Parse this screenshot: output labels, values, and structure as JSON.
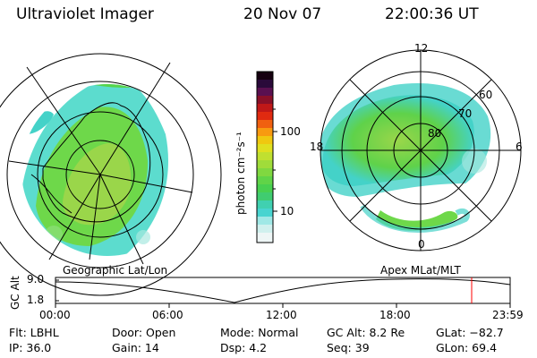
{
  "header": {
    "instrument": "Ultraviolet Imager",
    "date": "20 Nov 07",
    "time": "22:00:36 UT"
  },
  "colorbar": {
    "unit_label": "photon cm⁻²s⁻¹",
    "ticks": [
      "100",
      "10"
    ]
  },
  "polar_plot": {
    "mlt_labels": {
      "top": "12",
      "left": "18",
      "right": "6",
      "bottom": "0"
    },
    "mlat_labels": [
      "60",
      "70",
      "80"
    ]
  },
  "panel_labels": {
    "left": "Geographic Lat/Lon",
    "right": "Apex  MLat/MLT"
  },
  "altitude_plot": {
    "y_title": "GC Alt",
    "y_ticks": [
      "9.0",
      "1.8"
    ],
    "x_ticks": [
      "00:00",
      "06:00",
      "12:00",
      "18:00",
      "23:59"
    ]
  },
  "info": {
    "filter": "Flt: LBHL",
    "ip": "IP: 36.0",
    "door": "Door: Open",
    "gain": "Gain: 14",
    "mode": "Mode: Normal",
    "dsp": "Dsp:    4.2",
    "gc_alt": "GC Alt: 8.2 Re",
    "seq": "Seq: 39",
    "glat": "GLat: −82.7",
    "glon": "GLon:  69.4"
  },
  "colors": {
    "marker": "#ff0000"
  }
}
